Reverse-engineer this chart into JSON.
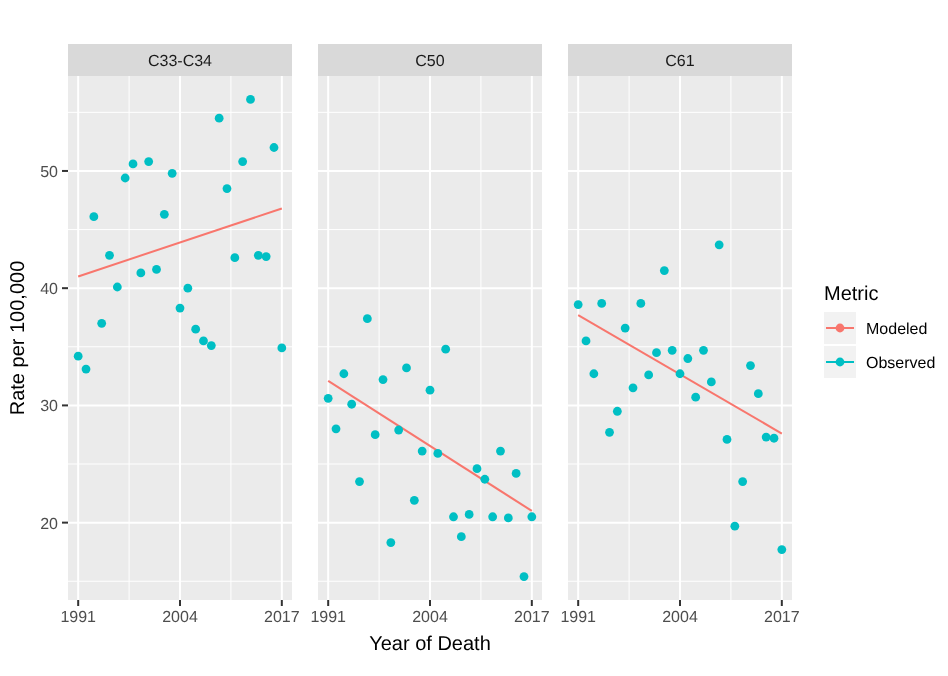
{
  "chart_data": [
    {
      "type": "scatter",
      "title": "C33-C34",
      "ylabel": "Rate per 100,000",
      "xlim": [
        1989.7,
        2018.3
      ],
      "xticks": [
        1991,
        2004,
        2017
      ],
      "ylim": [
        13.4,
        58.1
      ],
      "yticks": [
        20,
        30,
        40,
        50
      ],
      "grid": true,
      "series": [
        {
          "type": "line",
          "color": "#f8766d",
          "x": [
            1991,
            2017
          ],
          "values": [
            41.0,
            46.8
          ]
        },
        {
          "color": "#00bfc4",
          "marker": "circle",
          "x": [
            1991,
            1992,
            1993,
            1994,
            1995,
            1996,
            1997,
            1998,
            1999,
            2000,
            2001,
            2002,
            2003,
            2004,
            2005,
            2006,
            2007,
            2008,
            2009,
            2010,
            2011,
            2012,
            2013,
            2014,
            2015,
            2016,
            2017
          ],
          "values": [
            34.2,
            33.1,
            46.1,
            37.0,
            42.8,
            40.1,
            49.4,
            50.6,
            41.3,
            50.8,
            41.6,
            46.3,
            49.8,
            38.3,
            40.0,
            36.5,
            35.5,
            35.1,
            54.5,
            48.5,
            42.6,
            50.8,
            56.1,
            42.8,
            42.7,
            52.0,
            34.9
          ]
        }
      ]
    },
    {
      "type": "scatter",
      "title": "C50",
      "xlabel": "Year of Death",
      "xlim": [
        1989.7,
        2018.3
      ],
      "xticks": [
        1991,
        2004,
        2017
      ],
      "ylim": [
        13.4,
        58.1
      ],
      "yticks": [
        20,
        30,
        40,
        50
      ],
      "tick_labels": "x",
      "grid": true,
      "series": [
        {
          "type": "line",
          "color": "#f8766d",
          "x": [
            1991,
            2017
          ],
          "values": [
            32.1,
            21.0
          ]
        },
        {
          "color": "#00bfc4",
          "marker": "circle",
          "x": [
            1991,
            1992,
            1993,
            1994,
            1995,
            1996,
            1997,
            1998,
            1999,
            2000,
            2001,
            2002,
            2003,
            2004,
            2005,
            2006,
            2007,
            2008,
            2009,
            2010,
            2011,
            2012,
            2013,
            2014,
            2015,
            2016,
            2017
          ],
          "values": [
            30.6,
            28.0,
            32.7,
            30.1,
            23.5,
            37.4,
            27.5,
            32.2,
            18.3,
            27.9,
            33.2,
            21.9,
            26.1,
            31.3,
            25.9,
            34.8,
            20.5,
            18.8,
            20.7,
            24.6,
            23.7,
            20.5,
            26.1,
            20.4,
            24.2,
            15.4,
            20.5
          ]
        }
      ]
    },
    {
      "type": "scatter",
      "title": "C61",
      "legend_title": "Metric",
      "legend": "right",
      "xlim": [
        1989.7,
        2018.3
      ],
      "xticks": [
        1991,
        2004,
        2017
      ],
      "ylim": [
        13.4,
        58.1
      ],
      "yticks": [
        20,
        30,
        40,
        50
      ],
      "tick_labels": "x",
      "grid": true,
      "series": [
        {
          "name": "Modeled",
          "type": "line",
          "color": "#f8766d",
          "x": [
            1991,
            2017
          ],
          "values": [
            37.7,
            27.6
          ]
        },
        {
          "name": "Observed",
          "color": "#00bfc4",
          "marker": "circle",
          "x": [
            1991,
            1992,
            1993,
            1994,
            1995,
            1996,
            1997,
            1998,
            1999,
            2000,
            2001,
            2002,
            2003,
            2004,
            2005,
            2006,
            2007,
            2008,
            2009,
            2010,
            2011,
            2012,
            2013,
            2014,
            2015,
            2016,
            2017
          ],
          "values": [
            38.6,
            35.5,
            32.7,
            38.7,
            27.7,
            29.5,
            36.6,
            31.5,
            38.7,
            32.6,
            34.5,
            41.5,
            34.7,
            32.7,
            34.0,
            30.7,
            34.7,
            32.0,
            43.7,
            27.1,
            19.7,
            23.5,
            33.4,
            31.0,
            27.3,
            27.2,
            17.7
          ]
        }
      ]
    }
  ]
}
